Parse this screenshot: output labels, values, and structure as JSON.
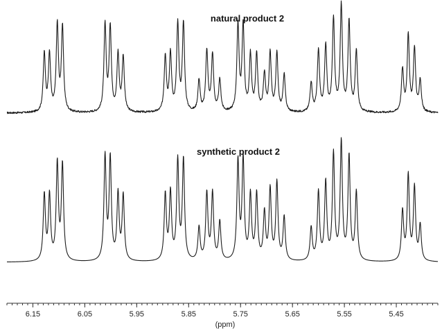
{
  "chart_data": {
    "type": "line",
    "xlabel": "(ppm)",
    "x_reversed": true,
    "xlim": [
      6.2,
      5.37
    ],
    "ticks": [
      6.15,
      6.05,
      5.95,
      5.85,
      5.75,
      5.65,
      5.55,
      5.45
    ],
    "tick_labels": [
      "6.15",
      "6.05",
      "5.95",
      "5.85",
      "5.75",
      "5.65",
      "5.55",
      "5.45"
    ],
    "minor_tick_step": 0.01,
    "grid": false,
    "series": [
      {
        "name": "natural product 2",
        "noise": true,
        "peaks": [
          [
            6.128,
            0.55
          ],
          [
            6.118,
            0.54
          ],
          [
            6.103,
            0.82
          ],
          [
            6.093,
            0.8
          ],
          [
            6.011,
            0.82
          ],
          [
            6.001,
            0.8
          ],
          [
            5.986,
            0.54
          ],
          [
            5.976,
            0.52
          ],
          [
            5.895,
            0.53
          ],
          [
            5.885,
            0.54
          ],
          [
            5.871,
            0.82
          ],
          [
            5.86,
            0.84
          ],
          [
            5.83,
            0.3
          ],
          [
            5.815,
            0.58
          ],
          [
            5.804,
            0.54
          ],
          [
            5.79,
            0.3
          ],
          [
            5.755,
            0.82
          ],
          [
            5.745,
            0.82
          ],
          [
            5.731,
            0.53
          ],
          [
            5.719,
            0.54
          ],
          [
            5.704,
            0.35
          ],
          [
            5.693,
            0.55
          ],
          [
            5.68,
            0.55
          ],
          [
            5.666,
            0.35
          ],
          [
            5.614,
            0.28
          ],
          [
            5.6,
            0.58
          ],
          [
            5.586,
            0.62
          ],
          [
            5.571,
            0.88
          ],
          [
            5.556,
            1.0
          ],
          [
            5.541,
            0.86
          ],
          [
            5.527,
            0.58
          ],
          [
            5.438,
            0.4
          ],
          [
            5.427,
            0.72
          ],
          [
            5.415,
            0.6
          ],
          [
            5.404,
            0.3
          ]
        ]
      },
      {
        "name": "synthetic product 2",
        "noise": false,
        "peaks": [
          [
            6.128,
            0.56
          ],
          [
            6.118,
            0.55
          ],
          [
            6.103,
            0.82
          ],
          [
            6.093,
            0.81
          ],
          [
            6.011,
            0.88
          ],
          [
            6.001,
            0.86
          ],
          [
            5.986,
            0.56
          ],
          [
            5.976,
            0.55
          ],
          [
            5.895,
            0.56
          ],
          [
            5.885,
            0.57
          ],
          [
            5.871,
            0.84
          ],
          [
            5.86,
            0.85
          ],
          [
            5.83,
            0.28
          ],
          [
            5.815,
            0.57
          ],
          [
            5.804,
            0.57
          ],
          [
            5.79,
            0.33
          ],
          [
            5.755,
            0.84
          ],
          [
            5.745,
            0.85
          ],
          [
            5.731,
            0.55
          ],
          [
            5.719,
            0.56
          ],
          [
            5.704,
            0.4
          ],
          [
            5.693,
            0.6
          ],
          [
            5.68,
            0.66
          ],
          [
            5.666,
            0.37
          ],
          [
            5.614,
            0.28
          ],
          [
            5.6,
            0.58
          ],
          [
            5.586,
            0.66
          ],
          [
            5.571,
            0.9
          ],
          [
            5.556,
            1.0
          ],
          [
            5.541,
            0.88
          ],
          [
            5.527,
            0.58
          ],
          [
            5.438,
            0.42
          ],
          [
            5.427,
            0.72
          ],
          [
            5.415,
            0.62
          ],
          [
            5.404,
            0.3
          ]
        ]
      }
    ]
  }
}
